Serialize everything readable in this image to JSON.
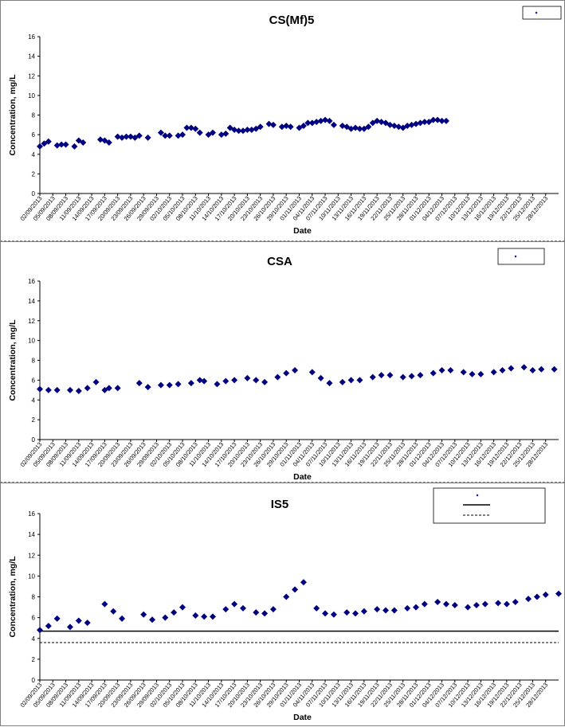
{
  "chart_data": [
    {
      "type": "scatter",
      "title": "CS(Mf)5",
      "xlabel": "Date",
      "ylabel": "Concentration, mg/L",
      "ylim": [
        0,
        16
      ],
      "yticks": [
        0,
        2,
        4,
        6,
        8,
        10,
        12,
        14,
        16
      ],
      "xlim": [
        "02/09/2013",
        "31/12/2013"
      ],
      "xticks": [
        "02/09/2013",
        "05/09/2013",
        "08/09/2013",
        "11/09/2013",
        "14/09/2013",
        "17/09/2013",
        "20/09/2013",
        "23/09/2013",
        "26/09/2013",
        "29/09/2013",
        "02/10/2013",
        "05/10/2013",
        "08/10/2013",
        "11/10/2013",
        "14/10/2013",
        "17/10/2013",
        "20/10/2013",
        "23/10/2013",
        "26/10/2013",
        "29/10/2013",
        "01/11/2013",
        "04/11/2013",
        "07/11/2013",
        "10/11/2013",
        "13/11/2013",
        "16/11/2013",
        "19/11/2013",
        "22/11/2013",
        "25/11/2013",
        "28/11/2013",
        "01/12/2013",
        "04/12/2013",
        "07/12/2013",
        "10/12/2013",
        "13/12/2013",
        "16/12/2013",
        "19/12/2013",
        "22/12/2013",
        "25/12/2013",
        "28/12/2013"
      ],
      "legend": "top-right",
      "grid": false,
      "hlines": [],
      "series": [
        {
          "color": "#000080",
          "marker": "diamond",
          "x": [
            "02/09/2013",
            "03/09/2013",
            "04/09/2013",
            "06/09/2013",
            "07/09/2013",
            "08/09/2013",
            "10/09/2013",
            "11/09/2013",
            "12/09/2013",
            "16/09/2013",
            "17/09/2013",
            "18/09/2013",
            "20/09/2013",
            "21/09/2013",
            "22/09/2013",
            "23/09/2013",
            "24/09/2013",
            "25/09/2013",
            "27/09/2013",
            "30/09/2013",
            "01/10/2013",
            "02/10/2013",
            "04/10/2013",
            "05/10/2013",
            "06/10/2013",
            "07/10/2013",
            "08/10/2013",
            "09/10/2013",
            "11/10/2013",
            "12/10/2013",
            "14/10/2013",
            "15/10/2013",
            "16/10/2013",
            "17/10/2013",
            "18/10/2013",
            "19/10/2013",
            "20/10/2013",
            "21/10/2013",
            "22/10/2013",
            "23/10/2013",
            "25/10/2013",
            "26/10/2013",
            "28/10/2013",
            "29/10/2013",
            "30/10/2013",
            "01/11/2013",
            "02/11/2013",
            "03/11/2013",
            "04/11/2013",
            "05/11/2013",
            "06/11/2013",
            "07/11/2013",
            "08/11/2013",
            "09/11/2013",
            "11/11/2013",
            "12/11/2013",
            "13/11/2013",
            "14/11/2013",
            "15/11/2013",
            "16/11/2013",
            "17/11/2013",
            "18/11/2013",
            "19/11/2013",
            "20/11/2013",
            "21/11/2013",
            "22/11/2013",
            "23/11/2013",
            "24/11/2013",
            "25/11/2013",
            "26/11/2013",
            "27/11/2013",
            "28/11/2013",
            "29/11/2013",
            "30/11/2013",
            "01/12/2013",
            "02/12/2013",
            "03/12/2013",
            "04/12/2013",
            "05/12/2013"
          ],
          "y": [
            4.8,
            5.1,
            5.3,
            4.9,
            5.0,
            5.0,
            4.8,
            5.4,
            5.2,
            5.5,
            5.4,
            5.2,
            5.8,
            5.7,
            5.8,
            5.8,
            5.7,
            5.9,
            5.7,
            6.2,
            5.9,
            5.9,
            5.9,
            6.0,
            6.7,
            6.7,
            6.6,
            6.2,
            6.0,
            6.2,
            6.0,
            6.1,
            6.7,
            6.5,
            6.4,
            6.4,
            6.5,
            6.5,
            6.6,
            6.8,
            7.1,
            7.0,
            6.8,
            6.9,
            6.8,
            6.7,
            6.9,
            7.2,
            7.2,
            7.3,
            7.4,
            7.5,
            7.4,
            7.0,
            6.9,
            6.8,
            6.6,
            6.7,
            6.6,
            6.6,
            6.8,
            7.2,
            7.4,
            7.3,
            7.2,
            7.0,
            6.9,
            6.8,
            6.7,
            6.9,
            7.0,
            7.1,
            7.2,
            7.3,
            7.3,
            7.5,
            7.5,
            7.4,
            7.4
          ]
        }
      ]
    },
    {
      "type": "scatter",
      "title": "CSA",
      "xlabel": "Date",
      "ylabel": "Concentration, mg/L",
      "ylim": [
        0,
        16
      ],
      "yticks": [
        0,
        2,
        4,
        6,
        8,
        10,
        12,
        14,
        16
      ],
      "xlim": [
        "02/09/2013",
        "31/12/2013"
      ],
      "xticks": [
        "02/09/2013",
        "05/09/2013",
        "08/09/2013",
        "11/09/2013",
        "14/09/2013",
        "17/09/2013",
        "20/09/2013",
        "23/09/2013",
        "26/09/2013",
        "29/09/2013",
        "02/10/2013",
        "05/10/2013",
        "08/10/2013",
        "11/10/2013",
        "14/10/2013",
        "17/10/2013",
        "20/10/2013",
        "23/10/2013",
        "26/10/2013",
        "29/10/2013",
        "01/11/2013",
        "04/11/2013",
        "07/11/2013",
        "10/11/2013",
        "13/11/2013",
        "16/11/2013",
        "19/11/2013",
        "22/11/2013",
        "25/11/2013",
        "28/11/2013",
        "01/12/2013",
        "04/12/2013",
        "07/12/2013",
        "10/12/2013",
        "13/12/2013",
        "16/12/2013",
        "19/12/2013",
        "22/12/2013",
        "25/12/2013",
        "28/12/2013"
      ],
      "legend": "top-right",
      "grid": false,
      "hlines": [],
      "series": [
        {
          "color": "#000080",
          "marker": "diamond",
          "x": [
            "02/09/2013",
            "04/09/2013",
            "06/09/2013",
            "09/09/2013",
            "11/09/2013",
            "13/09/2013",
            "15/09/2013",
            "17/09/2013",
            "18/09/2013",
            "20/09/2013",
            "25/09/2013",
            "27/09/2013",
            "30/09/2013",
            "02/10/2013",
            "04/10/2013",
            "07/10/2013",
            "09/10/2013",
            "10/10/2013",
            "13/10/2013",
            "15/10/2013",
            "17/10/2013",
            "20/10/2013",
            "22/10/2013",
            "24/10/2013",
            "27/10/2013",
            "29/10/2013",
            "31/10/2013",
            "04/11/2013",
            "06/11/2013",
            "08/11/2013",
            "11/11/2013",
            "13/11/2013",
            "15/11/2013",
            "18/11/2013",
            "20/11/2013",
            "22/11/2013",
            "25/11/2013",
            "27/11/2013",
            "29/11/2013",
            "02/12/2013",
            "04/12/2013",
            "06/12/2013",
            "09/12/2013",
            "11/12/2013",
            "13/12/2013",
            "16/12/2013",
            "18/12/2013",
            "20/12/2013",
            "23/12/2013",
            "25/12/2013",
            "27/12/2013",
            "30/12/2013"
          ],
          "y": [
            5.1,
            5.0,
            5.0,
            5.0,
            4.9,
            5.2,
            5.8,
            5.0,
            5.2,
            5.2,
            5.7,
            5.3,
            5.5,
            5.5,
            5.6,
            5.7,
            6.0,
            5.9,
            5.6,
            5.9,
            6.0,
            6.2,
            6.0,
            5.8,
            6.3,
            6.7,
            7.0,
            6.8,
            6.2,
            5.7,
            5.8,
            6.0,
            6.0,
            6.3,
            6.5,
            6.5,
            6.3,
            6.4,
            6.5,
            6.7,
            7.0,
            7.0,
            6.8,
            6.6,
            6.6,
            6.8,
            7.0,
            7.2,
            7.3,
            7.0,
            7.1,
            7.1
          ]
        }
      ]
    },
    {
      "type": "scatter",
      "title": "IS5",
      "xlabel": "Date",
      "ylabel": "Concentration, mg/L",
      "ylim": [
        0,
        16
      ],
      "yticks": [
        0,
        2,
        4,
        6,
        8,
        10,
        12,
        14,
        16
      ],
      "xlim": [
        "02/09/2013",
        "31/12/2013"
      ],
      "xticks": [
        "02/09/2013",
        "05/09/2013",
        "08/09/2013",
        "11/09/2013",
        "14/09/2013",
        "17/09/2013",
        "20/09/2013",
        "23/09/2013",
        "26/09/2013",
        "29/09/2013",
        "02/10/2013",
        "05/10/2013",
        "08/10/2013",
        "11/10/2013",
        "14/10/2013",
        "17/10/2013",
        "20/10/2013",
        "23/10/2013",
        "26/10/2013",
        "29/10/2013",
        "01/11/2013",
        "04/11/2013",
        "07/11/2013",
        "10/11/2013",
        "13/11/2013",
        "16/11/2013",
        "19/11/2013",
        "22/11/2013",
        "25/11/2013",
        "28/11/2013",
        "01/12/2013",
        "04/12/2013",
        "07/12/2013",
        "10/12/2013",
        "13/12/2013",
        "16/12/2013",
        "19/12/2013",
        "22/12/2013",
        "25/12/2013",
        "28/12/2013"
      ],
      "legend": "top-right",
      "grid": false,
      "hlines": [
        {
          "y": 4.7,
          "style": "solid"
        },
        {
          "y": 3.6,
          "style": "dashed"
        }
      ],
      "series": [
        {
          "color": "#000080",
          "marker": "diamond",
          "x": [
            "02/09/2013",
            "04/09/2013",
            "06/09/2013",
            "09/09/2013",
            "11/09/2013",
            "13/09/2013",
            "17/09/2013",
            "19/09/2013",
            "21/09/2013",
            "26/09/2013",
            "28/09/2013",
            "01/10/2013",
            "03/10/2013",
            "05/10/2013",
            "08/10/2013",
            "10/10/2013",
            "12/10/2013",
            "15/10/2013",
            "17/10/2013",
            "19/10/2013",
            "22/10/2013",
            "24/10/2013",
            "26/10/2013",
            "29/10/2013",
            "31/10/2013",
            "02/11/2013",
            "05/11/2013",
            "07/11/2013",
            "09/11/2013",
            "12/11/2013",
            "14/11/2013",
            "16/11/2013",
            "19/11/2013",
            "21/11/2013",
            "23/11/2013",
            "26/11/2013",
            "28/11/2013",
            "30/11/2013",
            "03/12/2013",
            "05/12/2013",
            "07/12/2013",
            "10/12/2013",
            "12/12/2013",
            "14/12/2013",
            "17/12/2013",
            "19/12/2013",
            "21/12/2013",
            "24/12/2013",
            "26/12/2013",
            "28/12/2013",
            "31/12/2013"
          ],
          "y": [
            4.8,
            5.2,
            5.9,
            5.1,
            5.7,
            5.5,
            7.3,
            6.6,
            5.9,
            6.3,
            5.8,
            6.0,
            6.5,
            7.0,
            6.2,
            6.1,
            6.1,
            6.8,
            7.3,
            6.9,
            6.5,
            6.4,
            6.8,
            8.0,
            8.7,
            9.4,
            6.9,
            6.4,
            6.3,
            6.5,
            6.4,
            6.6,
            6.8,
            6.7,
            6.7,
            6.9,
            7.0,
            7.3,
            7.5,
            7.3,
            7.2,
            7.0,
            7.2,
            7.3,
            7.4,
            7.3,
            7.5,
            7.8,
            8.0,
            8.2,
            8.3
          ]
        }
      ]
    }
  ]
}
